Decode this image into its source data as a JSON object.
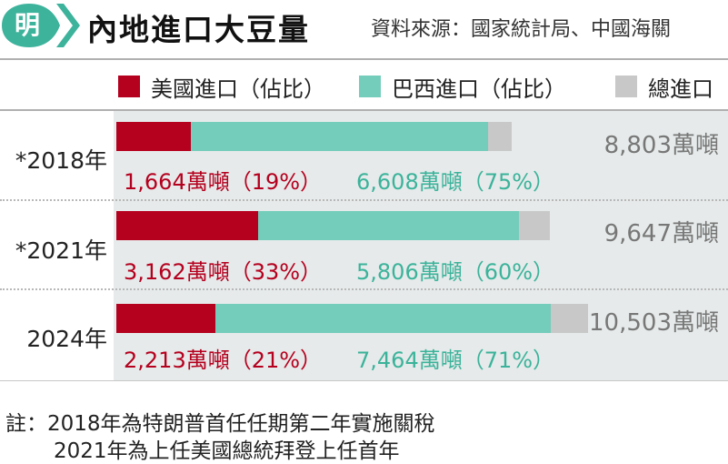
{
  "header": {
    "logo_text": "明",
    "title": "內地進口大豆量",
    "source": "資料來源：國家統計局、中國海關"
  },
  "legend": {
    "us": "美國進口（佔比）",
    "brazil": "巴西進口（佔比）",
    "total": "總進口"
  },
  "colors": {
    "us": "#b5001e",
    "brazil": "#74cdbb",
    "total": "#c8c8c8",
    "logo": "#3db39c"
  },
  "chart_data": {
    "type": "bar",
    "unit": "萬噸",
    "categories": [
      "*2018年",
      "*2021年",
      "2024年"
    ],
    "series": [
      {
        "name": "美國進口（佔比）",
        "values": [
          1664,
          3162,
          2213
        ]
      },
      {
        "name": "巴西進口（佔比）",
        "values": [
          6608,
          5806,
          7464
        ]
      },
      {
        "name": "總進口",
        "values": [
          8803,
          9647,
          10503
        ]
      }
    ],
    "rows": [
      {
        "year": "*2018年",
        "us": 1664,
        "brazil": 6608,
        "total": 8803,
        "us_label": "1,664萬噸（19%）",
        "brazil_label": "6,608萬噸（75%）",
        "total_label": "8,803萬噸"
      },
      {
        "year": "*2021年",
        "us": 3162,
        "brazil": 5806,
        "total": 9647,
        "us_label": "3,162萬噸（33%）",
        "brazil_label": "5,806萬噸（60%）",
        "total_label": "9,647萬噸"
      },
      {
        "year": "2024年",
        "us": 2213,
        "brazil": 7464,
        "total": 10503,
        "us_label": "2,213萬噸（21%）",
        "brazil_label": "7,464萬噸（71%）",
        "total_label": "10,503萬噸"
      }
    ],
    "legend_position": "top",
    "grid": false
  },
  "notes": {
    "line1": "註：2018年為特朗普首任任期第二年實施關稅",
    "line2": "2021年為上任美國總統拜登上任首年"
  }
}
